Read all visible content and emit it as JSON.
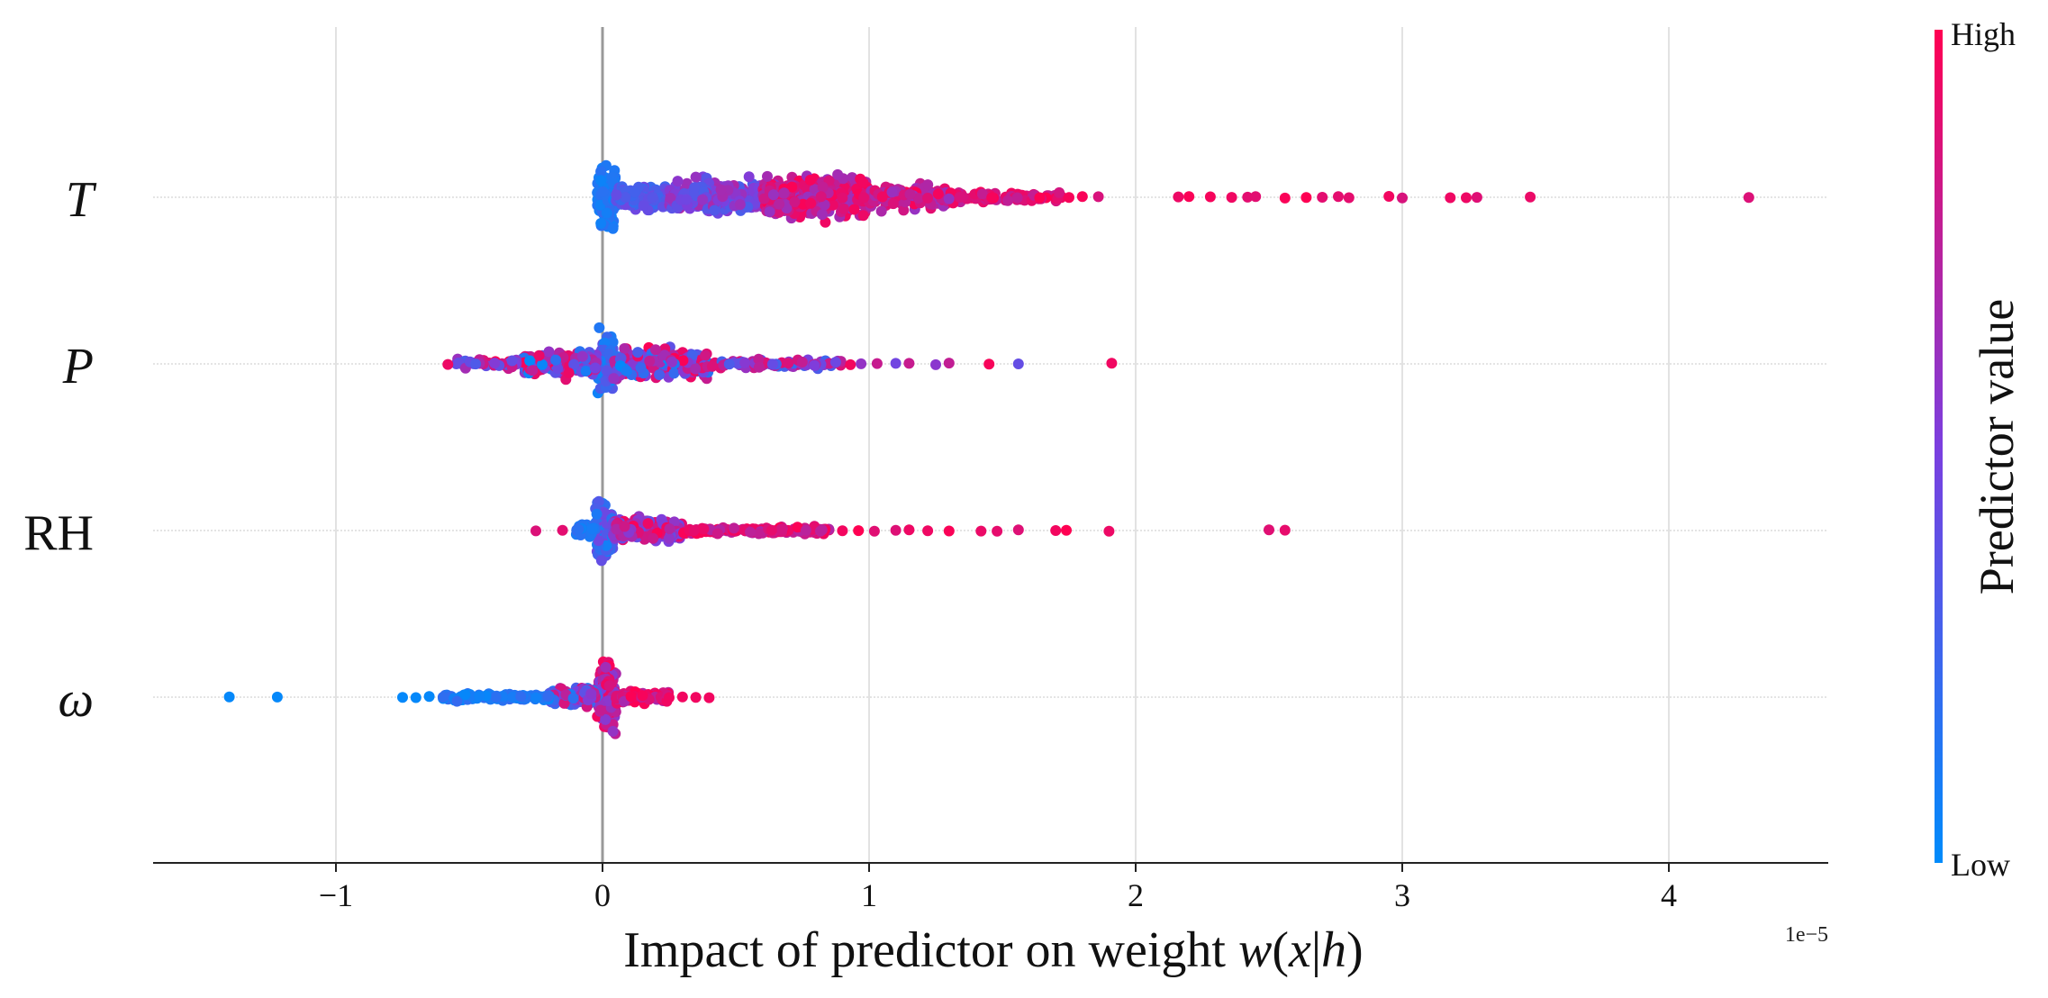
{
  "chart_data": {
    "type": "scatter",
    "subtype": "beeswarm",
    "title": "",
    "xlabel": "Impact of predictor on weight w(x|h)",
    "xlabel_parts": {
      "prefix": "Impact of predictor on weight ",
      "w": "w",
      "open": "(",
      "x": "x",
      "bar": "|",
      "h": "h",
      "close": ")"
    },
    "ylabel": "",
    "x_scale_note": "1e−5",
    "xlim": [
      -1.7,
      4.55
    ],
    "x_ticks": [
      -1,
      0,
      1,
      2,
      3,
      4
    ],
    "x_tick_labels": [
      "−1",
      "0",
      "1",
      "2",
      "3",
      "4"
    ],
    "grid": "vertical",
    "features": [
      {
        "label": "T",
        "italic": true,
        "min": -0.05,
        "max": 4.3,
        "body_spread": [
          0.0,
          1.0
        ],
        "color_trend": "high values to the right"
      },
      {
        "label": "P",
        "italic": true,
        "min": -0.58,
        "max": 1.91,
        "body_spread": [
          -0.35,
          0.45
        ],
        "color_trend": "mixed"
      },
      {
        "label": "RH",
        "italic": false,
        "min": -0.25,
        "max": 2.56,
        "body_spread": [
          -0.05,
          0.9
        ],
        "color_trend": "high values to the right"
      },
      {
        "label": "ω",
        "italic": true,
        "min": -1.4,
        "max": 0.4,
        "body_spread": [
          -0.6,
          0.25
        ],
        "color_trend": "low values to the left"
      }
    ],
    "outliers": {
      "T": [
        0.82,
        0.9,
        0.98,
        1.05,
        1.22,
        1.34,
        1.46,
        1.64,
        1.75,
        1.8,
        1.86,
        2.16,
        2.2,
        2.28,
        2.36,
        2.42,
        2.45,
        2.56,
        2.64,
        2.7,
        2.76,
        2.8,
        2.95,
        3.0,
        3.18,
        3.24,
        3.28,
        3.48,
        4.3
      ],
      "P": [
        -0.58,
        0.93,
        0.97,
        1.03,
        1.1,
        1.15,
        1.25,
        1.3,
        1.45,
        1.56,
        1.91
      ],
      "RH": [
        -0.25,
        -0.15,
        0.9,
        0.96,
        1.02,
        1.1,
        1.15,
        1.22,
        1.3,
        1.42,
        1.48,
        1.56,
        1.7,
        1.74,
        1.9,
        2.5,
        2.56
      ],
      "ω": [
        -1.4,
        -1.22,
        -0.75,
        -0.7,
        -0.65,
        0.25,
        0.3,
        0.35,
        0.4
      ]
    },
    "colorbar": {
      "title": "Predictor value",
      "high_label": "High",
      "low_label": "Low",
      "high_color": "#ff0052",
      "mid_color": "#7b3fdf",
      "low_color": "#008bfb"
    }
  }
}
